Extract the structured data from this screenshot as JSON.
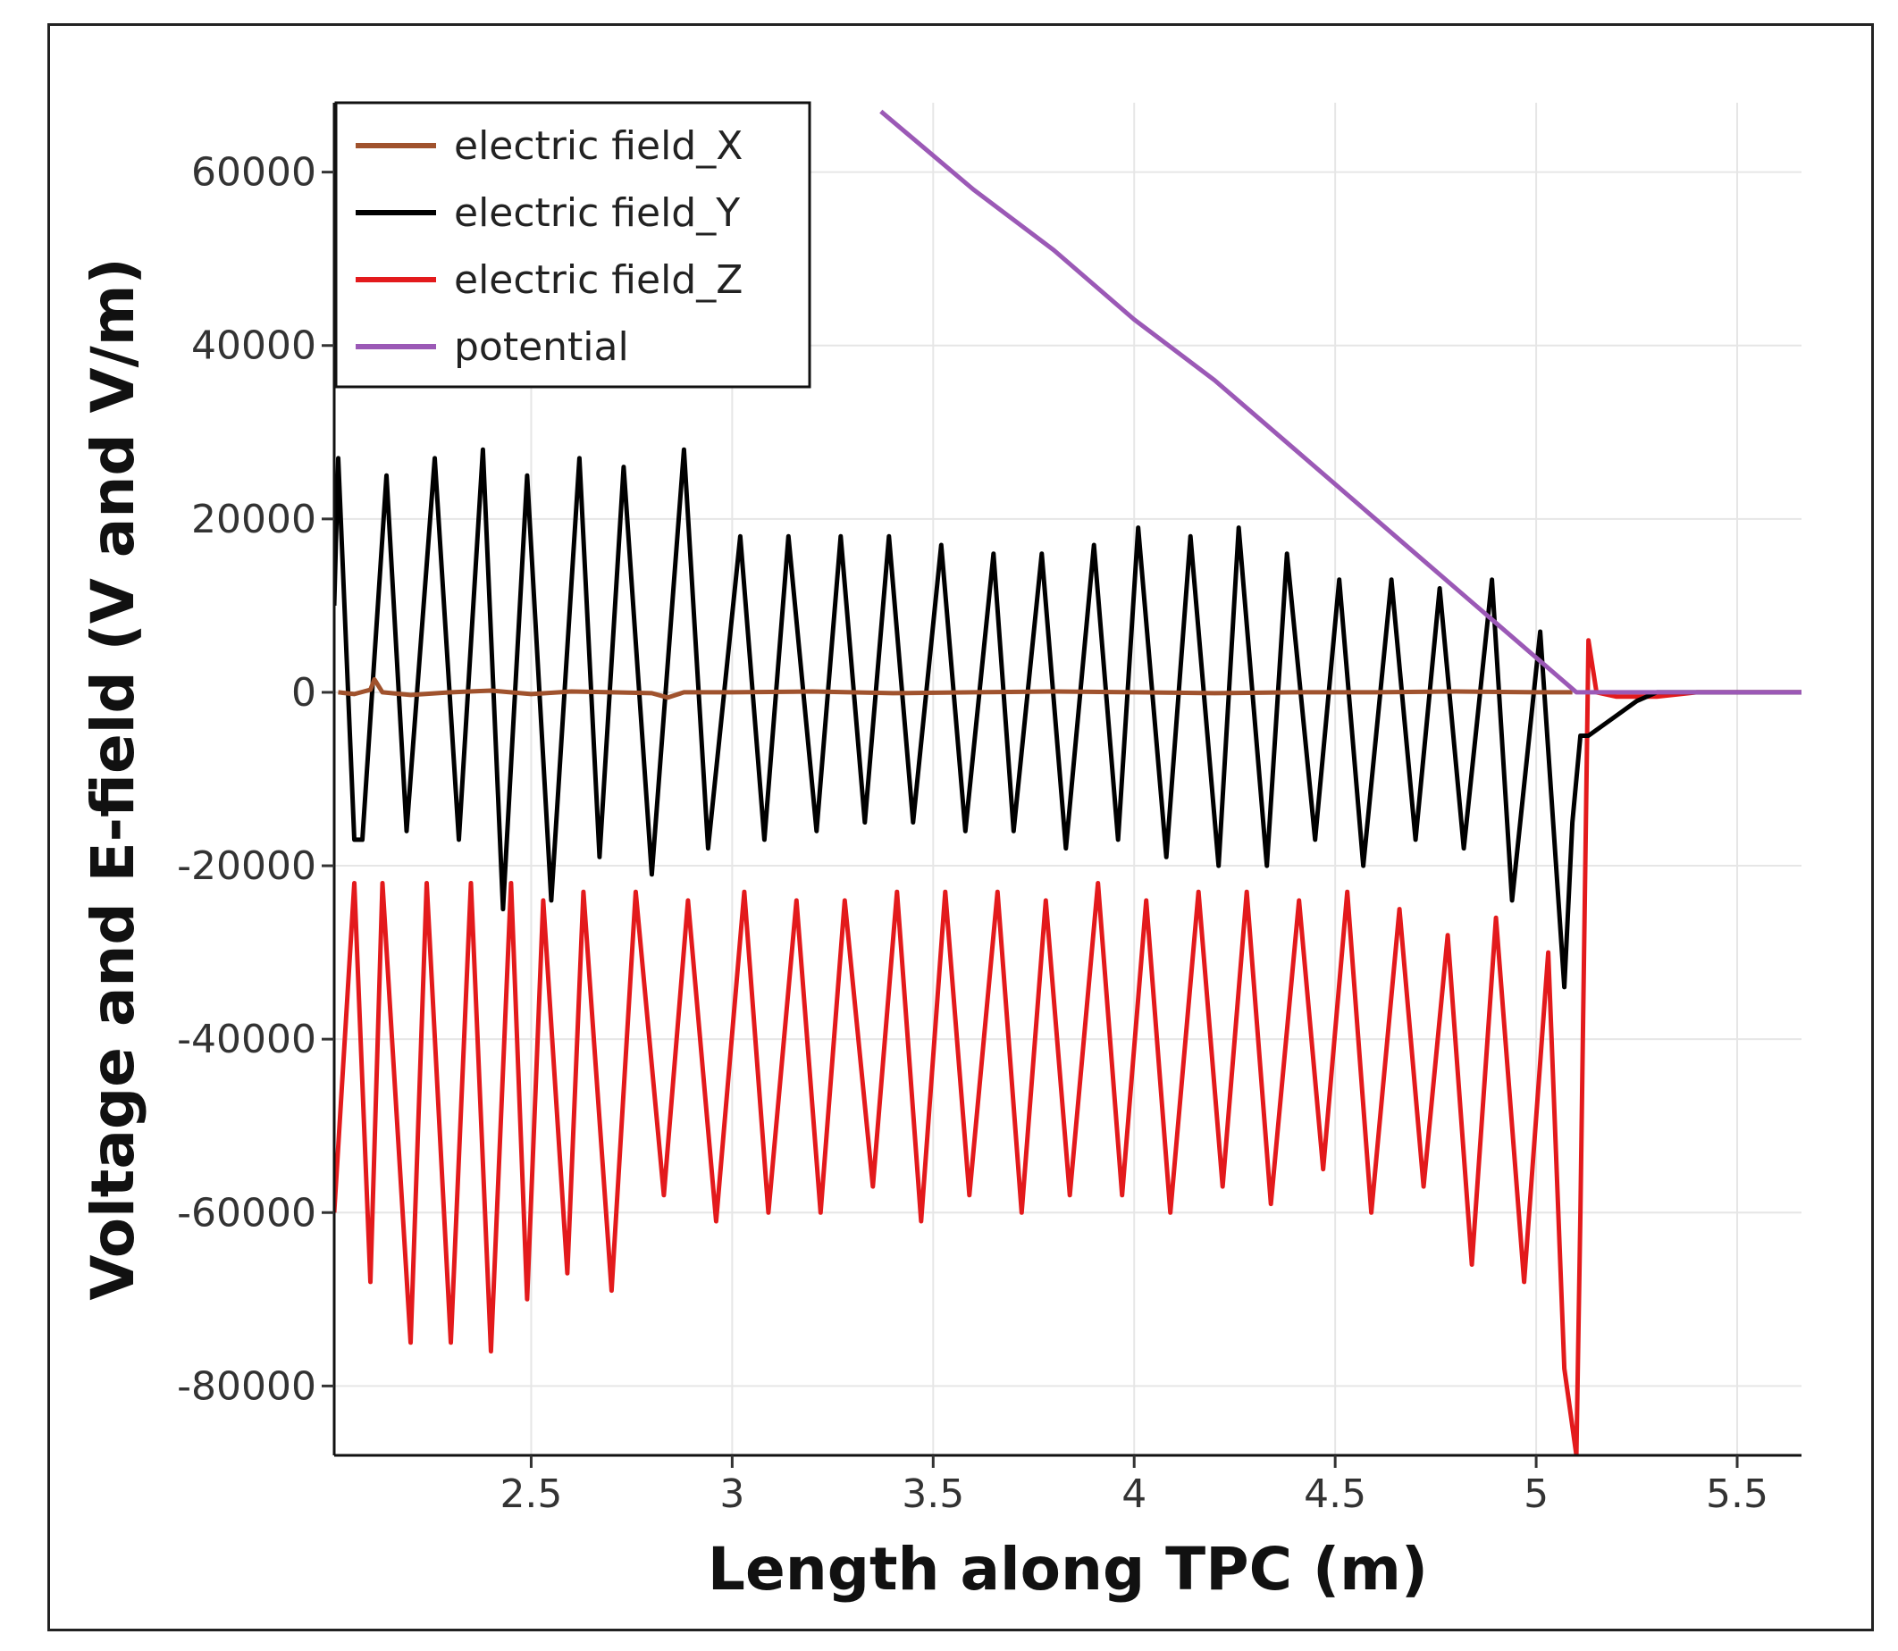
{
  "chart_data": {
    "type": "line",
    "title": "",
    "xlabel": "Length along TPC (m)",
    "ylabel": "Voltage and E-field (V and V/m)",
    "xlim": [
      2.01,
      5.66
    ],
    "ylim": [
      -88000,
      68000
    ],
    "xticks": [
      2.5,
      3,
      3.5,
      4,
      4.5,
      5,
      5.5
    ],
    "yticks": [
      60000,
      40000,
      20000,
      0,
      -20000,
      -40000,
      -60000,
      -80000
    ],
    "xtick_labels": [
      "2.5",
      "3",
      "3.5",
      "4",
      "4.5",
      "5",
      "5.5"
    ],
    "ytick_labels": [
      "60000",
      "40000",
      "20000",
      "0",
      "-20000",
      "-40000",
      "-60000",
      "-80000"
    ],
    "grid": true,
    "legend_position": "top-left",
    "series": [
      {
        "name": "electric field_X",
        "color": "#a0522d",
        "x": [
          2.02,
          2.06,
          2.1,
          2.11,
          2.13,
          2.2,
          2.3,
          2.4,
          2.5,
          2.6,
          2.7,
          2.8,
          2.84,
          2.88,
          3.0,
          3.2,
          3.4,
          3.6,
          3.8,
          4.0,
          4.2,
          4.4,
          4.6,
          4.8,
          5.0,
          5.09
        ],
        "y": [
          0,
          -200,
          300,
          1500,
          0,
          -300,
          0,
          200,
          -200,
          100,
          0,
          -100,
          -600,
          0,
          0,
          100,
          -100,
          0,
          100,
          0,
          -100,
          0,
          0,
          100,
          0,
          0
        ]
      },
      {
        "name": "electric field_Y",
        "color": "#000000",
        "x": [
          2.01,
          2.02,
          2.06,
          2.08,
          2.14,
          2.19,
          2.26,
          2.32,
          2.38,
          2.43,
          2.49,
          2.55,
          2.62,
          2.67,
          2.73,
          2.8,
          2.88,
          2.94,
          3.02,
          3.08,
          3.14,
          3.21,
          3.27,
          3.33,
          3.39,
          3.45,
          3.52,
          3.58,
          3.65,
          3.7,
          3.77,
          3.83,
          3.9,
          3.96,
          4.01,
          4.08,
          4.14,
          4.21,
          4.26,
          4.33,
          4.38,
          4.45,
          4.51,
          4.57,
          4.64,
          4.7,
          4.76,
          4.82,
          4.89,
          4.94,
          5.01,
          5.07,
          5.09,
          5.11,
          5.13,
          5.19,
          5.25,
          5.3,
          5.4,
          5.5,
          5.66
        ],
        "y": [
          10000,
          27000,
          -17000,
          -17000,
          25000,
          -16000,
          27000,
          -17000,
          28000,
          -25000,
          25000,
          -24000,
          27000,
          -19000,
          26000,
          -21000,
          28000,
          -18000,
          18000,
          -17000,
          18000,
          -16000,
          18000,
          -15000,
          18000,
          -15000,
          17000,
          -16000,
          16000,
          -16000,
          16000,
          -18000,
          17000,
          -17000,
          19000,
          -19000,
          18000,
          -20000,
          19000,
          -20000,
          16000,
          -17000,
          13000,
          -20000,
          13000,
          -17000,
          12000,
          -18000,
          13000,
          -24000,
          7000,
          -34000,
          -15000,
          -5000,
          -5000,
          -3000,
          -1000,
          0,
          0,
          0,
          0
        ]
      },
      {
        "name": "electric field_Z",
        "color": "#e31a1c",
        "x": [
          2.01,
          2.06,
          2.1,
          2.13,
          2.2,
          2.24,
          2.3,
          2.35,
          2.4,
          2.45,
          2.49,
          2.53,
          2.59,
          2.63,
          2.7,
          2.76,
          2.83,
          2.89,
          2.96,
          3.03,
          3.09,
          3.16,
          3.22,
          3.28,
          3.35,
          3.41,
          3.47,
          3.53,
          3.59,
          3.66,
          3.72,
          3.78,
          3.84,
          3.91,
          3.97,
          4.03,
          4.09,
          4.16,
          4.22,
          4.28,
          4.34,
          4.41,
          4.47,
          4.53,
          4.59,
          4.66,
          4.72,
          4.78,
          4.84,
          4.9,
          4.97,
          5.03,
          5.07,
          5.1,
          5.11,
          5.13,
          5.15,
          5.2,
          5.3,
          5.4,
          5.66
        ],
        "y": [
          -60000,
          -22000,
          -68000,
          -22000,
          -75000,
          -22000,
          -75000,
          -22000,
          -76000,
          -22000,
          -70000,
          -24000,
          -67000,
          -23000,
          -69000,
          -23000,
          -58000,
          -24000,
          -61000,
          -23000,
          -60000,
          -24000,
          -60000,
          -24000,
          -57000,
          -23000,
          -61000,
          -23000,
          -58000,
          -23000,
          -60000,
          -24000,
          -58000,
          -22000,
          -58000,
          -24000,
          -60000,
          -23000,
          -57000,
          -23000,
          -59000,
          -24000,
          -55000,
          -23000,
          -60000,
          -25000,
          -57000,
          -28000,
          -66000,
          -26000,
          -68000,
          -30000,
          -78000,
          -88000,
          -60000,
          6000,
          0,
          -500,
          -500,
          0,
          0
        ]
      },
      {
        "name": "potential",
        "color": "#9b59b6",
        "x": [
          3.37,
          3.6,
          3.8,
          4.0,
          4.2,
          4.4,
          4.5,
          4.6,
          4.7,
          4.8,
          4.9,
          5.0,
          5.05,
          5.1,
          5.15,
          5.3,
          5.66
        ],
        "y": [
          67000,
          58000,
          51000,
          43000,
          36000,
          28000,
          24000,
          20000,
          16000,
          12000,
          8000,
          4000,
          2000,
          0,
          0,
          0,
          0
        ]
      }
    ]
  }
}
